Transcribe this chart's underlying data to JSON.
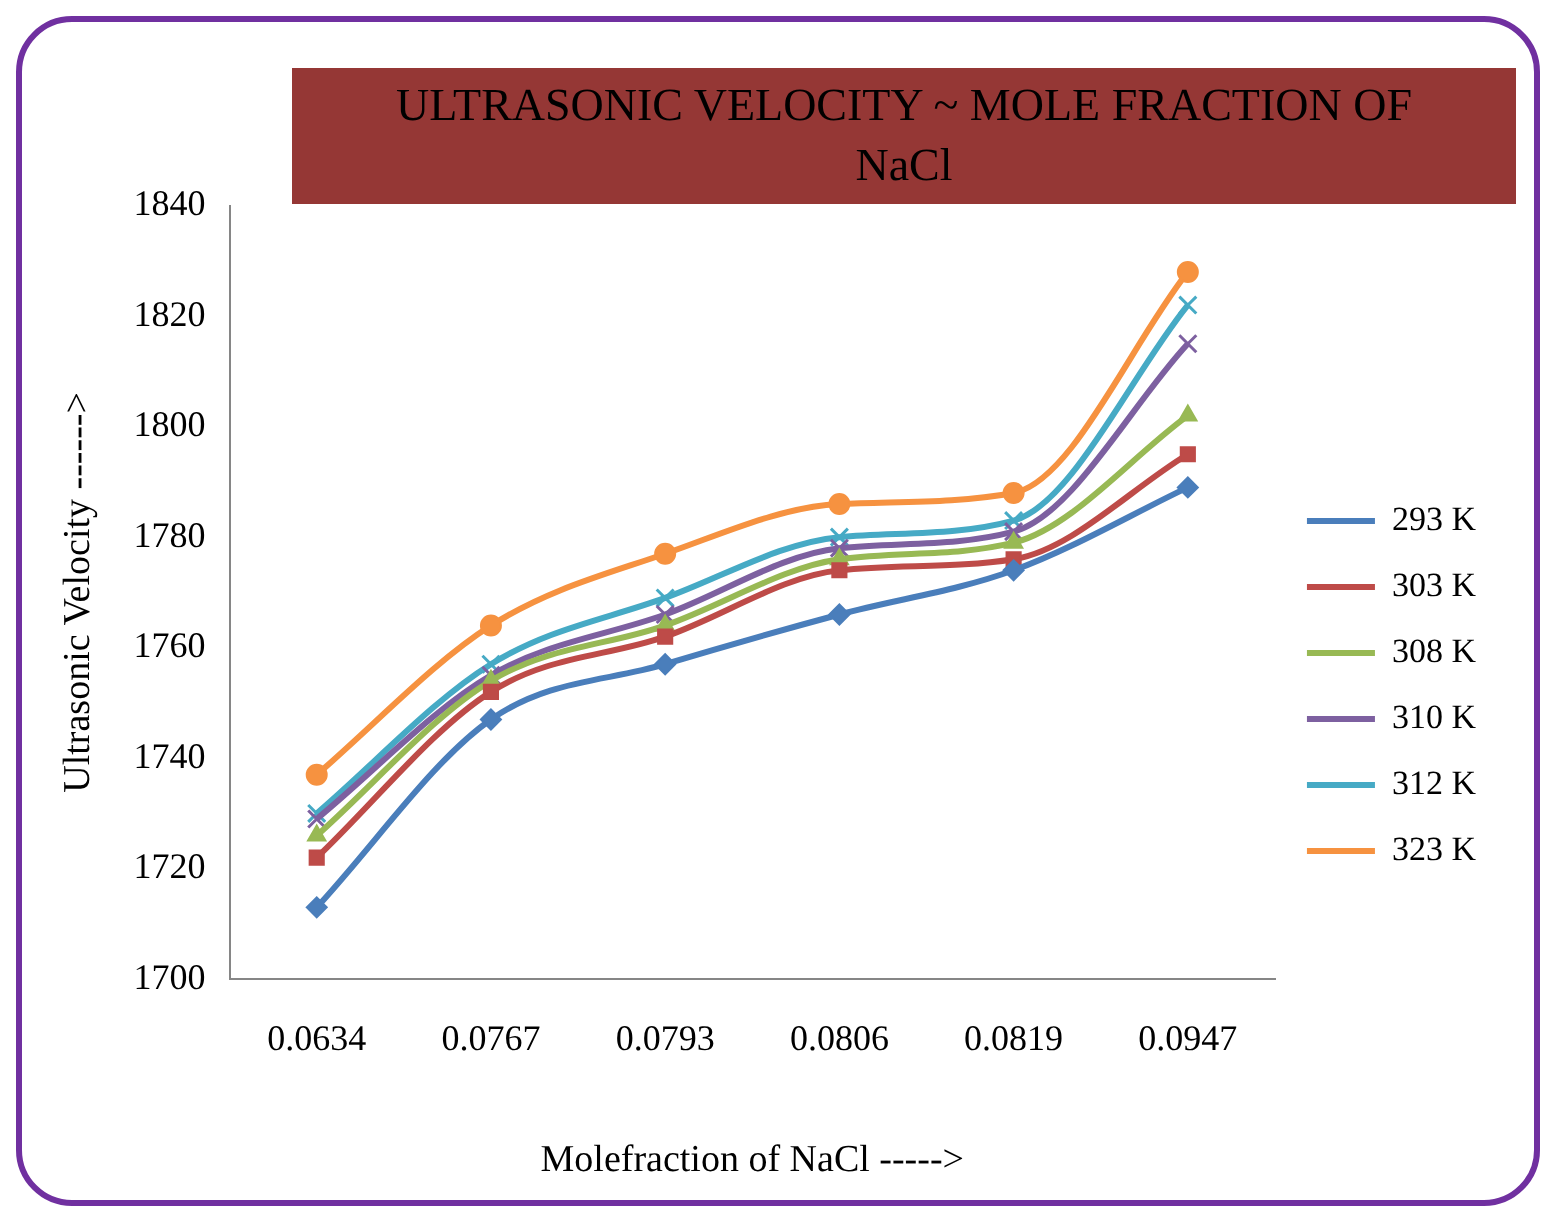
{
  "chart_data": {
    "type": "line",
    "title": "ULTRASONIC VELOCITY ~ MOLE FRACTION OF NaCl",
    "xlabel": "Molefraction of NaCl ----->",
    "ylabel": "Ultrasonic Velocity ------>",
    "categories": [
      "0.0634",
      "0.0767",
      "0.0793",
      "0.0806",
      "0.0819",
      "0.0947"
    ],
    "ylim": [
      1700,
      1840
    ],
    "yticks": [
      1700,
      1720,
      1740,
      1760,
      1780,
      1800,
      1820,
      1840
    ],
    "grid": false,
    "legend": "right",
    "line_style": "solid",
    "series": [
      {
        "name": "293 K",
        "color": "#4a7ebb",
        "marker": "diamond",
        "values": [
          1713,
          1747,
          1757,
          1766,
          1774,
          1789
        ]
      },
      {
        "name": "303 K",
        "color": "#be4b48",
        "marker": "square",
        "values": [
          1722,
          1752,
          1762,
          1774,
          1776,
          1795
        ]
      },
      {
        "name": "308 K",
        "color": "#98b954",
        "marker": "triangle",
        "values": [
          1726,
          1754,
          1764,
          1776,
          1779,
          1802
        ]
      },
      {
        "name": "310 K",
        "color": "#7d60a0",
        "marker": "cross",
        "values": [
          1729,
          1755,
          1766,
          1778,
          1781,
          1815
        ]
      },
      {
        "name": "312 K",
        "color": "#46aac5",
        "marker": "cross",
        "values": [
          1730,
          1757,
          1769,
          1780,
          1783,
          1822
        ]
      },
      {
        "name": "323 K",
        "color": "#f69240",
        "marker": "circle",
        "values": [
          1737,
          1764,
          1777,
          1786,
          1788,
          1828
        ]
      }
    ]
  }
}
